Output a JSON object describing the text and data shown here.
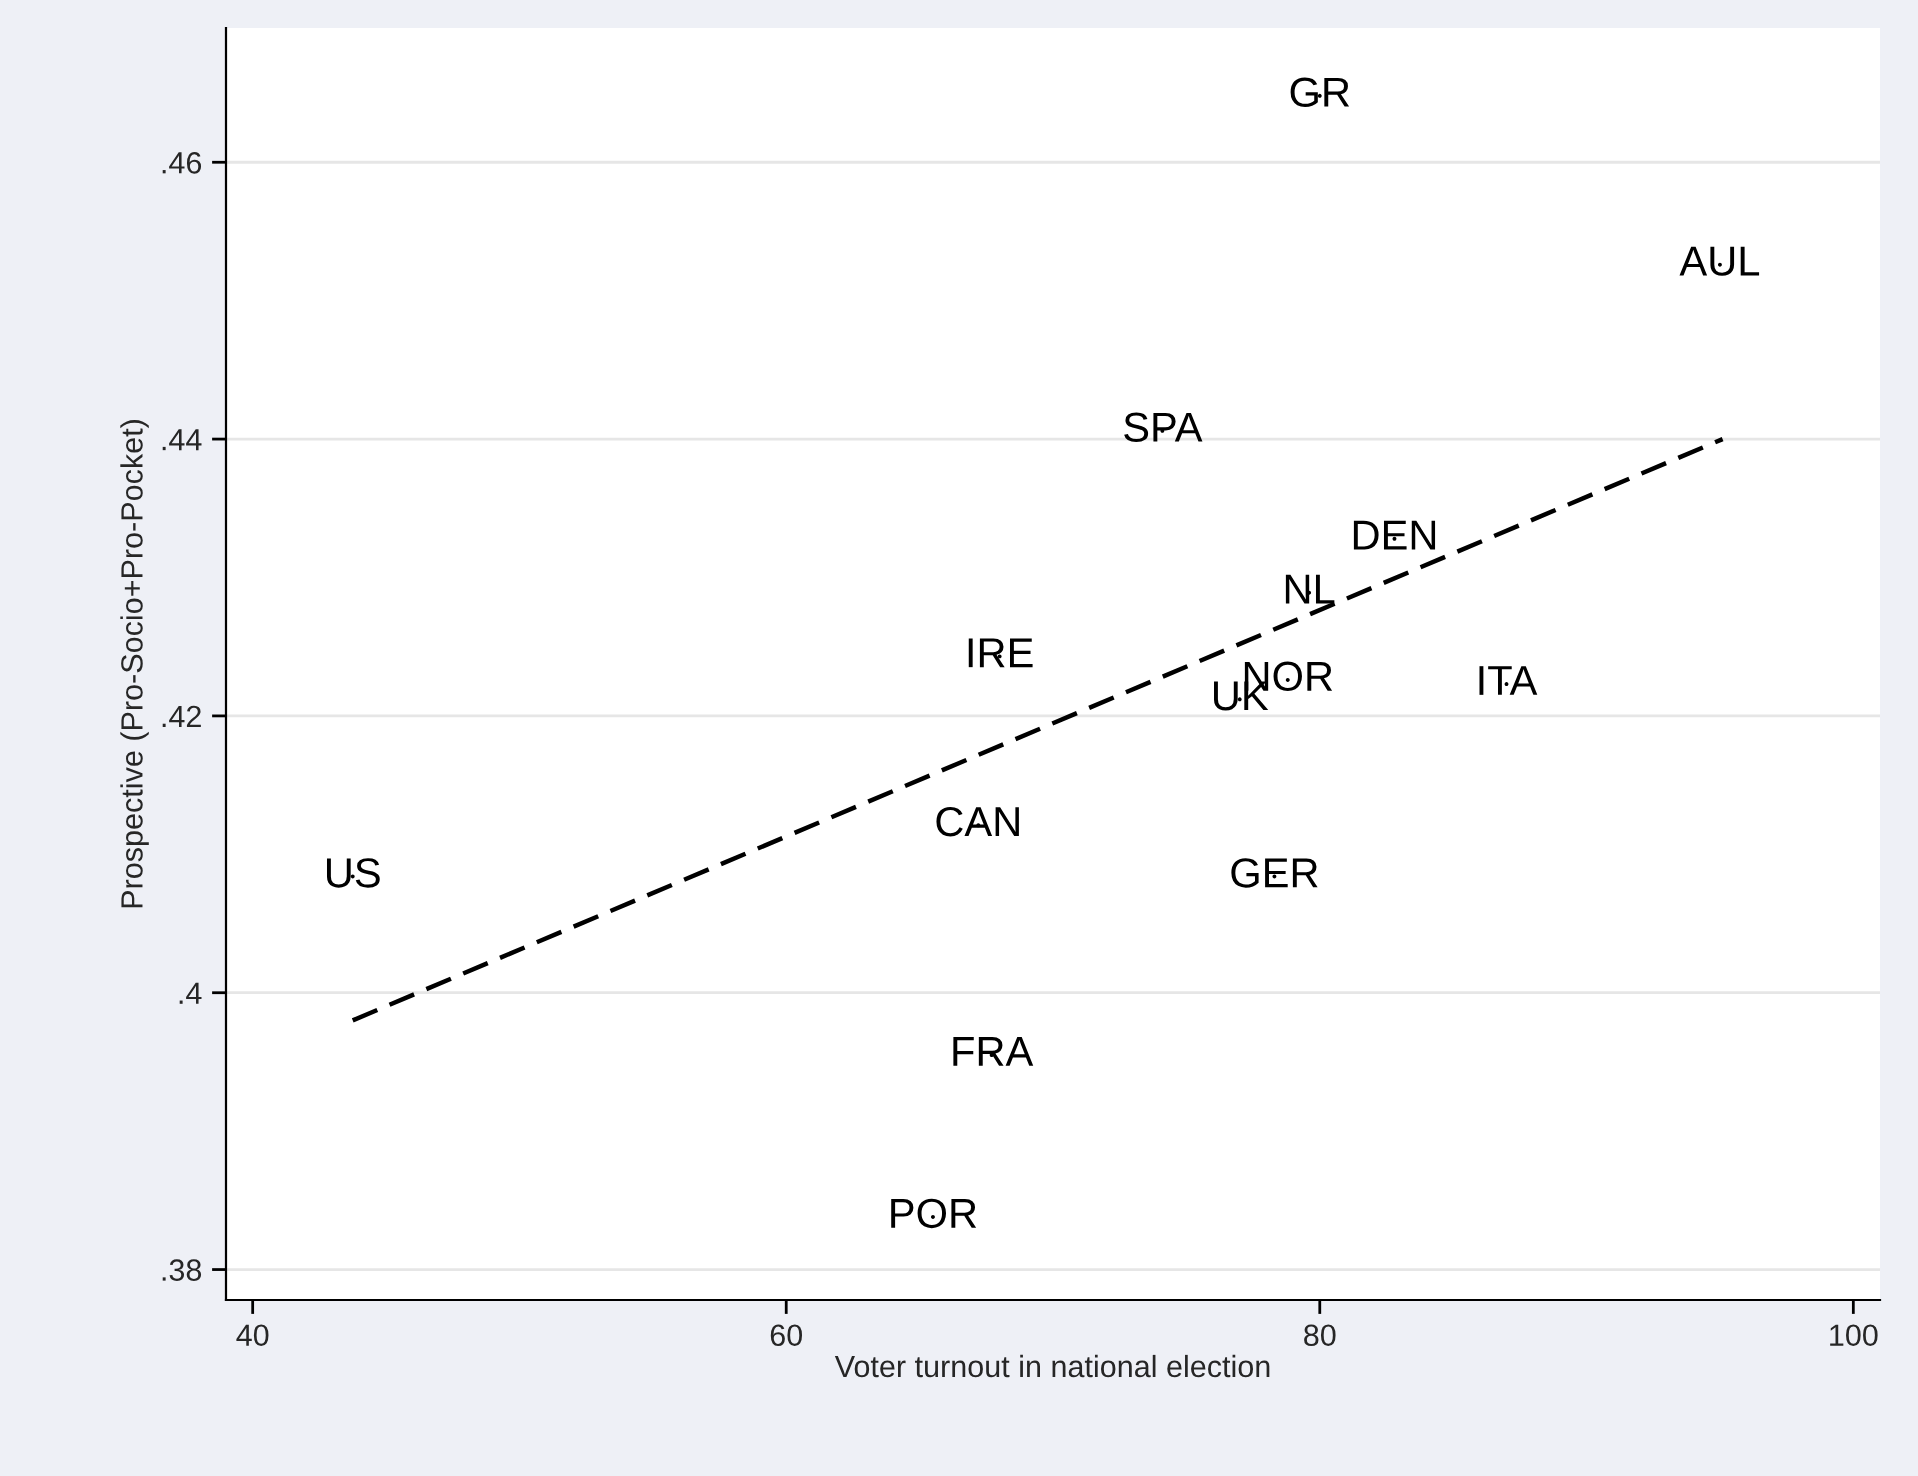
{
  "chart_data": {
    "type": "scatter",
    "xlabel": "Voter turnout in national election",
    "ylabel": "Prospective (Pro-Socio+Pro-Pocket)",
    "series": [
      {
        "type": "scatter",
        "color": "#000000",
        "marker": "none",
        "x": [
          80.0,
          95.0,
          74.1,
          82.8,
          79.6,
          68.0,
          78.8,
          77.0,
          87.0,
          67.2,
          78.3,
          43.75,
          67.7,
          65.5
        ],
        "values": [
          0.4648,
          0.4526,
          0.4406,
          0.4328,
          0.4289,
          0.4243,
          0.4226,
          0.4212,
          0.4223,
          0.4121,
          0.4084,
          0.4084,
          0.3955,
          0.3838
        ],
        "value_labels": [
          "GR",
          "AUL",
          "SPA",
          "DEN",
          "NL",
          "IRE",
          "NOR",
          "UK",
          "ITA",
          "CAN",
          "GER",
          "US",
          "FRA",
          "POR"
        ]
      },
      {
        "type": "line",
        "color": "#000000",
        "line_style": "dashed",
        "x": [
          43.75,
          95.1
        ],
        "values": [
          0.398,
          0.44
        ]
      }
    ],
    "xlim": [
      39,
      101
    ],
    "xticks": [
      40,
      60,
      80,
      100
    ],
    "ylim": [
      0.3778,
      0.4697
    ],
    "yticks": [
      {
        "value": 0.38,
        "label": ".38"
      },
      {
        "value": 0.4,
        "label": ".4"
      },
      {
        "value": 0.42,
        "label": ".42"
      },
      {
        "value": 0.44,
        "label": ".44"
      },
      {
        "value": 0.46,
        "label": ".46"
      }
    ],
    "grid": "y",
    "legend": false
  }
}
